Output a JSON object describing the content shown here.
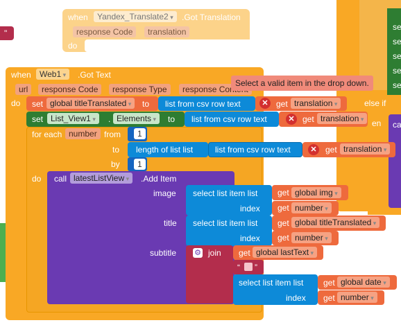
{
  "top_event": {
    "when_label": "when",
    "component": "Yandex_Translate2",
    "event": ".Got Translation",
    "params": [
      "response Code",
      "translation"
    ],
    "do_label": "do"
  },
  "main_event": {
    "when_label": "when",
    "component": "Web1",
    "event": ".Got Text",
    "params": [
      "url",
      "response Code",
      "response Type",
      "response Content"
    ],
    "do_label": "do"
  },
  "tooltip": "Select a valid item in the drop down.",
  "row_set1": {
    "set_label": "set",
    "var": "global titleTranslated",
    "to_label": "to",
    "fn": "list from csv row  text",
    "get_label": "get",
    "get_var": "translation"
  },
  "row_set2": {
    "set_label": "set",
    "component": "List_View1",
    "prop": "Elements",
    "to_label": "to",
    "fn": "list from csv row  text",
    "get_label": "get",
    "get_var": "translation"
  },
  "for_each": {
    "label": "for each",
    "var": "number",
    "from_label": "from",
    "from_val": "1",
    "to_label": "to",
    "length_fn": "length of list  list",
    "csv_fn": "list from csv row  text",
    "get_label": "get",
    "get_var": "translation",
    "by_label": "by",
    "by_val": "1",
    "do_label": "do"
  },
  "call_block": {
    "call_label": "call",
    "component": "latestListView",
    "method": ".Add Item",
    "image_label": "image",
    "title_label": "title",
    "subtitle_label": "subtitle",
    "index_label": "index",
    "select_fn": "select list item  list",
    "get_label": "get",
    "img_var": "global img",
    "number_var": "number",
    "title_var": "global titleTranslated",
    "join_label": "join",
    "last_text_var": "global lastText",
    "quote_left": "“",
    "quote_right": "”",
    "date_var": "global date"
  },
  "right_side": {
    "else_if": "else if",
    "then_fragment": "en",
    "ca_fragment": "ca",
    "se_labels": [
      "se",
      "se",
      "se",
      "se",
      "se",
      "se"
    ]
  },
  "left_edge": {
    "fragment": "\""
  },
  "colors": {
    "event": "#f9a825",
    "variable": "#ee6a3d",
    "component": "#2e7d32",
    "list": "#0d8ad8",
    "procedure": "#6a3ab2",
    "text": "#b32d4c",
    "error": "#d32f2f"
  }
}
